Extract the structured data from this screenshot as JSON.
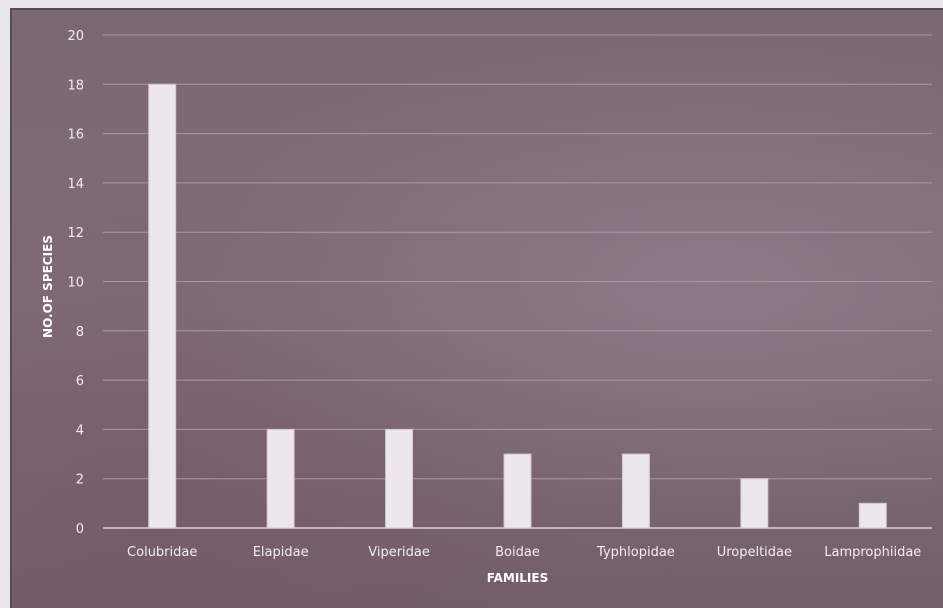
{
  "chart_data": {
    "type": "bar",
    "categories": [
      "Colubridae",
      "Elapidae",
      "Viperidae",
      "Boidae",
      "Typhlopidae",
      "Uropeltidae",
      "Lamprophiidae"
    ],
    "values": [
      18,
      4,
      4,
      3,
      3,
      2,
      1
    ],
    "title": "",
    "xlabel": "FAMILIES",
    "ylabel": "NO.OF SPECIES",
    "ylim": [
      0,
      20
    ],
    "yticks": [
      0,
      2,
      4,
      6,
      8,
      10,
      12,
      14,
      16,
      18,
      20
    ],
    "grid": true,
    "colors": {
      "bar": "#ede6ee",
      "background": "#7a6772"
    }
  }
}
